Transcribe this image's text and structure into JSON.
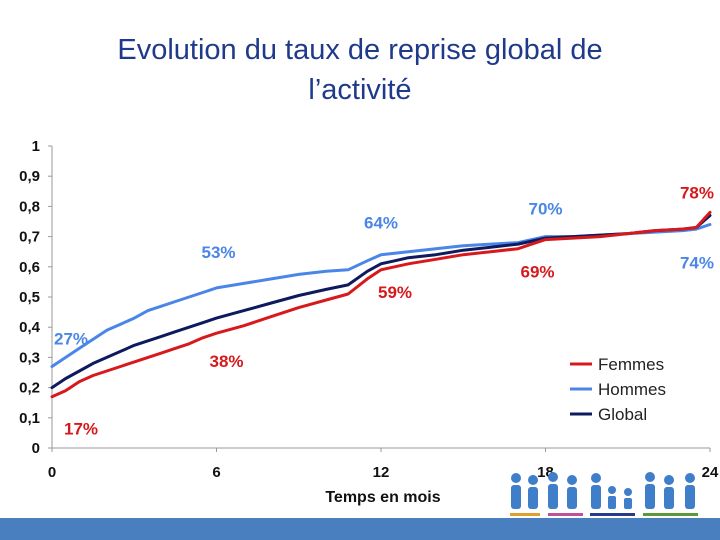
{
  "title": {
    "line1": "Evolution du taux de reprise global de",
    "line2": "l’activité"
  },
  "chart_data": {
    "type": "line",
    "title": "Evolution du taux de reprise global de l’activité",
    "xlabel": "Temps en mois",
    "ylabel": "",
    "xlim": [
      0,
      24
    ],
    "ylim": [
      0,
      1
    ],
    "x_ticks": [
      "0",
      "6",
      "12",
      "18",
      "24"
    ],
    "y_ticks": [
      "0",
      "0,1",
      "0,2",
      "0,3",
      "0,4",
      "0,5",
      "0,6",
      "0,7",
      "0,8",
      "0,9",
      "1"
    ],
    "grid": false,
    "legend_position": "bottom-right",
    "series": [
      {
        "name": "Femmes",
        "color": "#d7191c",
        "x": [
          0,
          0.5,
          1,
          1.5,
          2,
          2.5,
          3,
          3.5,
          4,
          4.5,
          5,
          5.5,
          6,
          7,
          8,
          9,
          10,
          10.8,
          11.5,
          12,
          12.5,
          13,
          14,
          15,
          16,
          17,
          17.5,
          18,
          19,
          20,
          21,
          22,
          23,
          23.5,
          24
        ],
        "values": [
          0.17,
          0.19,
          0.22,
          0.24,
          0.255,
          0.27,
          0.285,
          0.3,
          0.315,
          0.33,
          0.345,
          0.365,
          0.38,
          0.405,
          0.435,
          0.465,
          0.49,
          0.51,
          0.56,
          0.59,
          0.6,
          0.61,
          0.625,
          0.64,
          0.65,
          0.66,
          0.675,
          0.69,
          0.695,
          0.7,
          0.71,
          0.72,
          0.725,
          0.73,
          0.78
        ]
      },
      {
        "name": "Hommes",
        "color": "#4a86e8",
        "x": [
          0,
          0.5,
          1,
          1.5,
          2,
          2.5,
          3,
          3.5,
          4,
          4.5,
          5,
          5.5,
          6,
          7,
          8,
          9,
          10,
          10.8,
          11.5,
          12,
          12.5,
          13,
          14,
          15,
          16,
          17,
          17.5,
          18,
          19,
          20,
          21,
          22,
          23,
          23.5,
          24
        ],
        "values": [
          0.27,
          0.3,
          0.33,
          0.36,
          0.39,
          0.41,
          0.43,
          0.455,
          0.47,
          0.485,
          0.5,
          0.515,
          0.53,
          0.545,
          0.56,
          0.575,
          0.585,
          0.59,
          0.62,
          0.64,
          0.645,
          0.65,
          0.66,
          0.67,
          0.675,
          0.68,
          0.69,
          0.7,
          0.7,
          0.705,
          0.71,
          0.715,
          0.72,
          0.725,
          0.74
        ]
      },
      {
        "name": "Global",
        "color": "#0d1a5e",
        "x": [
          0,
          0.5,
          1,
          1.5,
          2,
          2.5,
          3,
          3.5,
          4,
          4.5,
          5,
          5.5,
          6,
          7,
          8,
          9,
          10,
          10.8,
          11.5,
          12,
          12.5,
          13,
          14,
          15,
          16,
          17,
          17.5,
          18,
          19,
          20,
          21,
          22,
          23,
          23.5,
          24
        ],
        "values": [
          0.2,
          0.23,
          0.255,
          0.28,
          0.3,
          0.32,
          0.34,
          0.355,
          0.37,
          0.385,
          0.4,
          0.415,
          0.43,
          0.455,
          0.48,
          0.505,
          0.525,
          0.54,
          0.585,
          0.61,
          0.62,
          0.63,
          0.64,
          0.655,
          0.665,
          0.675,
          0.685,
          0.695,
          0.7,
          0.705,
          0.71,
          0.72,
          0.725,
          0.73,
          0.77
        ]
      }
    ],
    "annotations": [
      {
        "text": "27%",
        "series": "Hommes",
        "x": 0,
        "y": 0.27
      },
      {
        "text": "17%",
        "series": "Femmes",
        "x": 0,
        "y": 0.17
      },
      {
        "text": "53%",
        "series": "Hommes",
        "x": 6,
        "y": 0.53
      },
      {
        "text": "38%",
        "series": "Femmes",
        "x": 6,
        "y": 0.38
      },
      {
        "text": "64%",
        "series": "Hommes",
        "x": 12,
        "y": 0.64
      },
      {
        "text": "59%",
        "series": "Femmes",
        "x": 12,
        "y": 0.59
      },
      {
        "text": "70%",
        "series": "Hommes",
        "x": 18,
        "y": 0.7
      },
      {
        "text": "69%",
        "series": "Femmes",
        "x": 18,
        "y": 0.69
      },
      {
        "text": "78%",
        "series": "Femmes",
        "x": 24,
        "y": 0.78
      },
      {
        "text": "74%",
        "series": "Hommes",
        "x": 24,
        "y": 0.74
      }
    ]
  }
}
